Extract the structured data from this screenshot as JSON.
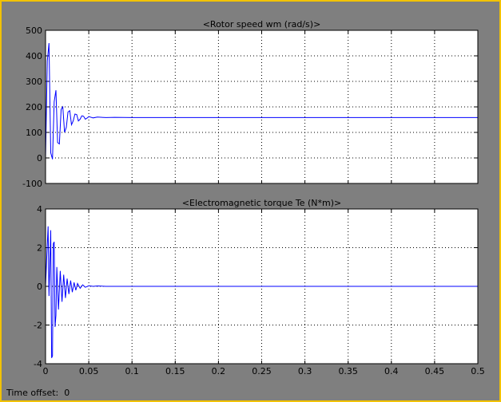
{
  "footer": {
    "time_offset_label": "Time offset:",
    "time_offset_value": "0"
  },
  "colors": {
    "background": "#7f7f7f",
    "axes_bg": "#ffffff",
    "line": "#0000ff",
    "frame": "#f2c200"
  },
  "chart_data": [
    {
      "type": "line",
      "title": "<Rotor speed wm (rad/s)>",
      "xlabel": "",
      "ylabel": "",
      "xlim": [
        0,
        0.5
      ],
      "ylim": [
        -100,
        500
      ],
      "xticks": [
        0,
        0.05,
        0.1,
        0.15,
        0.2,
        0.25,
        0.3,
        0.35,
        0.4,
        0.45,
        0.5
      ],
      "xtick_labels": [
        "",
        "",
        "",
        "",
        "",
        "",
        "",
        "",
        "",
        "",
        ""
      ],
      "yticks": [
        -100,
        0,
        100,
        200,
        300,
        400,
        500
      ],
      "ytick_labels": [
        "-100",
        "0",
        "100",
        "200",
        "300",
        "400",
        "500"
      ],
      "grid": true,
      "series": [
        {
          "color": "#0000ff",
          "x": [
            0,
            0.002,
            0.004,
            0.006,
            0.008,
            0.01,
            0.012,
            0.014,
            0.016,
            0.018,
            0.02,
            0.022,
            0.024,
            0.026,
            0.028,
            0.03,
            0.032,
            0.034,
            0.036,
            0.038,
            0.04,
            0.042,
            0.044,
            0.046,
            0.048,
            0.05,
            0.055,
            0.06,
            0.07,
            0.08,
            0.1,
            0.15,
            0.2,
            0.25,
            0.3,
            0.35,
            0.4,
            0.45,
            0.5
          ],
          "y": [
            0,
            380,
            450,
            20,
            -5,
            220,
            265,
            60,
            55,
            190,
            200,
            100,
            120,
            180,
            185,
            130,
            145,
            172,
            170,
            145,
            152,
            165,
            163,
            152,
            156,
            162,
            157,
            160,
            158,
            159,
            158,
            158,
            158,
            158,
            158,
            158,
            158,
            158,
            158
          ]
        }
      ]
    },
    {
      "type": "line",
      "title": "<Electromagnetic torque Te (N*m)>",
      "xlabel": "",
      "ylabel": "",
      "xlim": [
        0,
        0.5
      ],
      "ylim": [
        -4,
        4
      ],
      "xticks": [
        0,
        0.05,
        0.1,
        0.15,
        0.2,
        0.25,
        0.3,
        0.35,
        0.4,
        0.45,
        0.5
      ],
      "xtick_labels": [
        "0",
        "0.05",
        "0.1",
        "0.15",
        "0.2",
        "0.25",
        "0.3",
        "0.35",
        "0.4",
        "0.45",
        "0.5"
      ],
      "yticks": [
        -4,
        -2,
        0,
        2,
        4
      ],
      "ytick_labels": [
        "-4",
        "-2",
        "0",
        "2",
        "4"
      ],
      "grid": true,
      "series": [
        {
          "color": "#0000ff",
          "x": [
            0,
            0.002,
            0.003,
            0.004,
            0.006,
            0.007,
            0.008,
            0.009,
            0.01,
            0.011,
            0.012,
            0.013,
            0.015,
            0.017,
            0.019,
            0.021,
            0.023,
            0.025,
            0.027,
            0.029,
            0.031,
            0.033,
            0.035,
            0.037,
            0.04,
            0.043,
            0.046,
            0.05,
            0.055,
            0.06,
            0.07,
            0.1,
            0.15,
            0.2,
            0.25,
            0.3,
            0.35,
            0.4,
            0.45,
            0.5
          ],
          "y": [
            0,
            2.2,
            3.1,
            -0.5,
            2.9,
            -3.7,
            -3.6,
            2.2,
            2.3,
            -2.1,
            -1.5,
            1.0,
            -1.2,
            0.8,
            -0.8,
            0.6,
            -0.6,
            0.4,
            -0.4,
            0.3,
            -0.3,
            0.2,
            -0.2,
            0.15,
            -0.1,
            0.08,
            -0.05,
            0.03,
            0.0,
            0.02,
            0.0,
            0.0,
            0.0,
            0.0,
            0.0,
            0.0,
            0.0,
            0.0,
            0.0,
            0.0
          ]
        }
      ]
    }
  ]
}
